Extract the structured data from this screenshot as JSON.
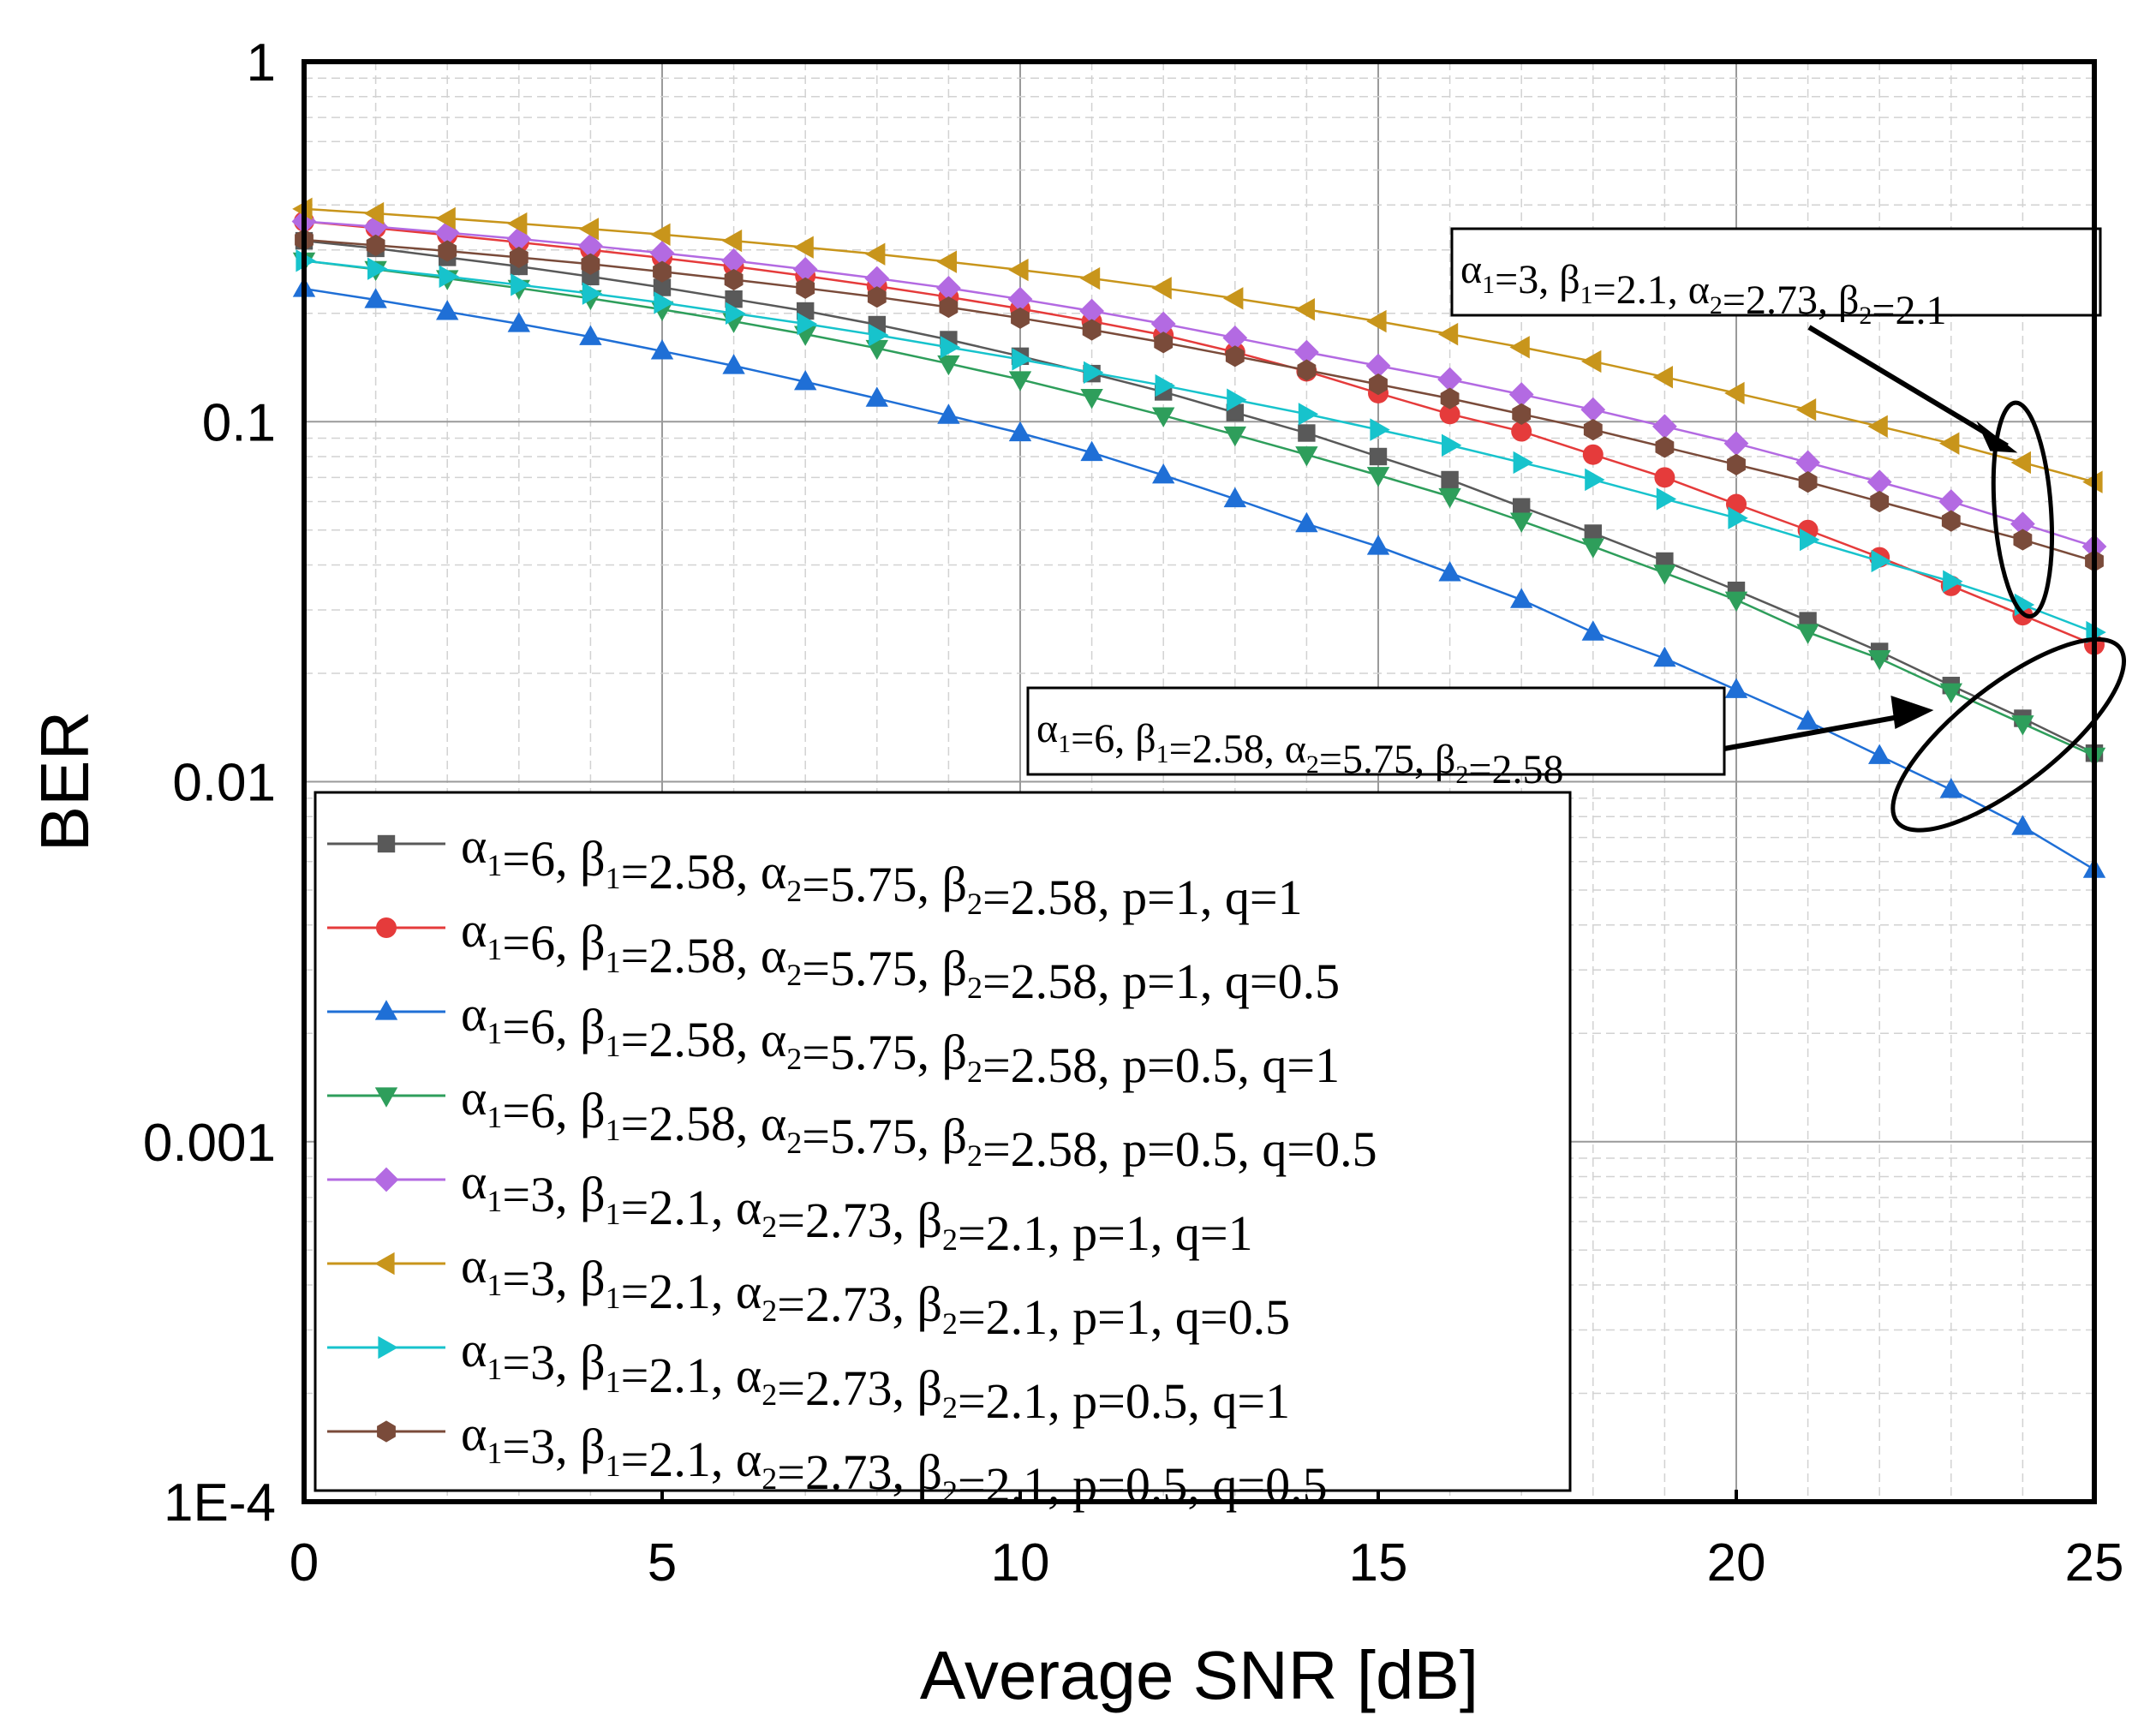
{
  "chart_data": {
    "type": "line",
    "x_label": "Average SNR [dB]",
    "y_label": "BER",
    "y_scale": "log",
    "x_range": [
      0,
      25
    ],
    "y_range": [
      0.0001,
      1
    ],
    "x_ticks": [
      {
        "value": 0,
        "label": "0"
      },
      {
        "value": 5,
        "label": "5"
      },
      {
        "value": 10,
        "label": "10"
      },
      {
        "value": 15,
        "label": "15"
      },
      {
        "value": 20,
        "label": "20"
      },
      {
        "value": 25,
        "label": "25"
      }
    ],
    "y_ticks": [
      {
        "value": 1,
        "label": "1"
      },
      {
        "value": 0.1,
        "label": "0.1"
      },
      {
        "value": 0.01,
        "label": "0.01"
      },
      {
        "value": 0.001,
        "label": "0.001"
      },
      {
        "value": 0.0001,
        "label": "1E-4"
      }
    ],
    "grid": "major and minor",
    "legend_position": "lower-left",
    "x": [
      0,
      1,
      2,
      3,
      4,
      5,
      6,
      7,
      8,
      9,
      10,
      11,
      12,
      13,
      14,
      15,
      16,
      17,
      18,
      19,
      20,
      21,
      22,
      23,
      24,
      25
    ],
    "series": [
      {
        "label": "α1=6, β1=2.58, α2=5.75, β2=2.58, p=1, q=1",
        "color": "#595959",
        "marker": "square",
        "values": [
          0.318,
          0.303,
          0.286,
          0.27,
          0.253,
          0.236,
          0.219,
          0.203,
          0.186,
          0.169,
          0.152,
          0.136,
          0.121,
          0.106,
          0.093,
          0.08,
          0.069,
          0.058,
          0.049,
          0.041,
          0.034,
          0.028,
          0.023,
          0.0185,
          0.015,
          0.012
        ]
      },
      {
        "label": "α1=6, β1=2.58, α2=5.75, β2=2.58, p=1, q=0.5",
        "color": "#e53b3b",
        "marker": "circle",
        "values": [
          0.36,
          0.345,
          0.33,
          0.315,
          0.3,
          0.285,
          0.27,
          0.254,
          0.238,
          0.222,
          0.206,
          0.19,
          0.174,
          0.156,
          0.138,
          0.12,
          0.105,
          0.094,
          0.081,
          0.07,
          0.059,
          0.05,
          0.042,
          0.035,
          0.029,
          0.024
        ]
      },
      {
        "label": "α1=6, β1=2.58, α2=5.75, β2=2.58, p=0.5, q=1",
        "color": "#1f6fd6",
        "marker": "triangle-up",
        "values": [
          0.234,
          0.218,
          0.202,
          0.187,
          0.172,
          0.157,
          0.143,
          0.129,
          0.116,
          0.104,
          0.093,
          0.082,
          0.071,
          0.061,
          0.052,
          0.045,
          0.038,
          0.032,
          0.026,
          0.022,
          0.018,
          0.0147,
          0.0118,
          0.0095,
          0.0075,
          0.0057
        ]
      },
      {
        "label": "α1=6, β1=2.58, α2=5.75, β2=2.58, p=0.5, q=0.5",
        "color": "#2e9e5b",
        "marker": "triangle-down",
        "values": [
          0.28,
          0.265,
          0.25,
          0.235,
          0.22,
          0.205,
          0.19,
          0.175,
          0.16,
          0.145,
          0.131,
          0.117,
          0.104,
          0.092,
          0.081,
          0.071,
          0.062,
          0.053,
          0.045,
          0.038,
          0.032,
          0.026,
          0.022,
          0.0178,
          0.0145,
          0.0118
        ]
      },
      {
        "label": "α1=3, β1=2.1, α2=2.73, β2=2.1, p=1, q=1",
        "color": "#b36ae2",
        "marker": "diamond",
        "values": [
          0.36,
          0.348,
          0.335,
          0.322,
          0.308,
          0.294,
          0.28,
          0.265,
          0.25,
          0.235,
          0.219,
          0.203,
          0.187,
          0.171,
          0.156,
          0.143,
          0.131,
          0.119,
          0.108,
          0.097,
          0.087,
          0.077,
          0.068,
          0.06,
          0.052,
          0.045
        ]
      },
      {
        "label": "α1=3, β1=2.1, α2=2.73, β2=2.1, p=1, q=0.5",
        "color": "#c8951b",
        "marker": "triangle-left",
        "values": [
          0.39,
          0.379,
          0.367,
          0.355,
          0.343,
          0.331,
          0.318,
          0.305,
          0.292,
          0.278,
          0.264,
          0.25,
          0.235,
          0.22,
          0.205,
          0.19,
          0.175,
          0.161,
          0.147,
          0.133,
          0.12,
          0.108,
          0.097,
          0.087,
          0.077,
          0.068
        ]
      },
      {
        "label": "α1=3, β1=2.1, α2=2.73, β2=2.1, p=0.5, q=1",
        "color": "#17c3cc",
        "marker": "triangle-right",
        "values": [
          0.28,
          0.266,
          0.253,
          0.24,
          0.227,
          0.214,
          0.2,
          0.187,
          0.174,
          0.161,
          0.149,
          0.137,
          0.126,
          0.115,
          0.105,
          0.095,
          0.086,
          0.077,
          0.069,
          0.061,
          0.054,
          0.047,
          0.041,
          0.036,
          0.031,
          0.026
        ]
      },
      {
        "label": "α1=3, β1=2.1, α2=2.73, β2=2.1, p=0.5, q=0.5",
        "color": "#7a4b3a",
        "marker": "hexagon",
        "values": [
          0.32,
          0.309,
          0.298,
          0.286,
          0.274,
          0.261,
          0.248,
          0.235,
          0.222,
          0.208,
          0.194,
          0.18,
          0.166,
          0.152,
          0.139,
          0.127,
          0.116,
          0.105,
          0.095,
          0.085,
          0.076,
          0.068,
          0.06,
          0.053,
          0.047,
          0.041
        ]
      }
    ],
    "annotations": [
      {
        "id": "upper",
        "parts": [
          [
            "α",
            "1"
          ],
          "=3, ",
          [
            "β",
            "1"
          ],
          "=2.1, ",
          [
            "α",
            "2"
          ],
          "=2.73, ",
          [
            "β",
            "2"
          ],
          "=2.1"
        ],
        "ellipse_center": [
          24,
          0.057
        ],
        "arrow_to": [
          24,
          0.082
        ]
      },
      {
        "id": "lower",
        "parts": [
          [
            "α",
            "1"
          ],
          "=6, ",
          [
            "β",
            "1"
          ],
          "=2.58, ",
          [
            "α",
            "2"
          ],
          "=5.75, ",
          [
            "β",
            "2"
          ],
          "=2.58"
        ],
        "ellipse_center": [
          23.8,
          0.0135
        ],
        "arrow_to": [
          22.9,
          0.0158
        ]
      }
    ]
  }
}
